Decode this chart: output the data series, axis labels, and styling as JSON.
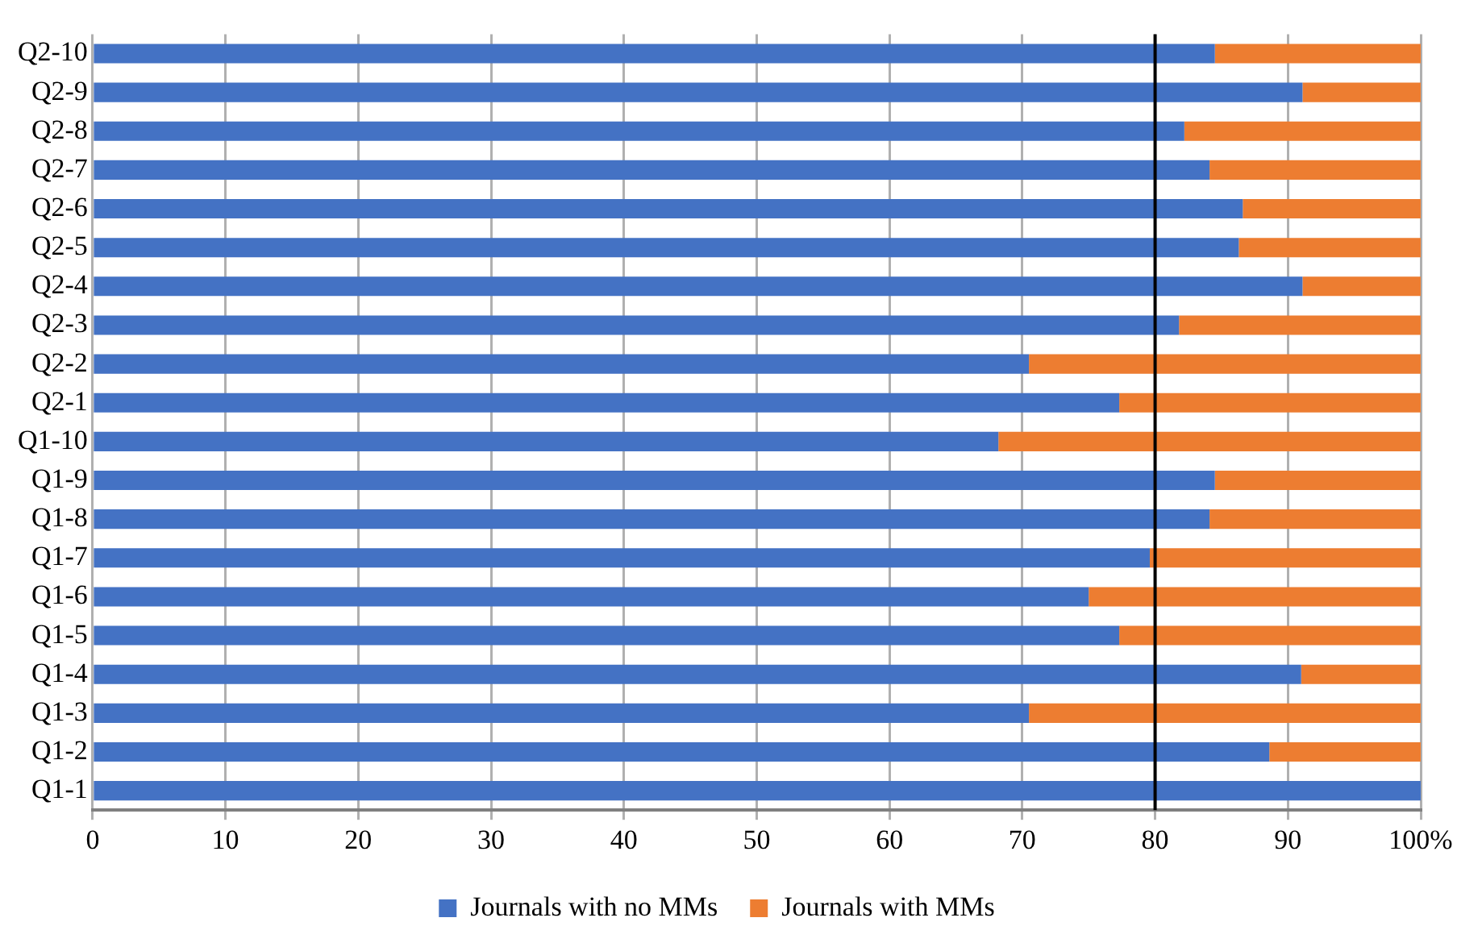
{
  "chart_data": {
    "type": "bar",
    "orientation": "horizontal",
    "stacked": true,
    "categories": [
      "Q2-10",
      "Q2-9",
      "Q2-8",
      "Q2-7",
      "Q2-6",
      "Q2-5",
      "Q2-4",
      "Q2-3",
      "Q2-2",
      "Q2-1",
      "Q1-10",
      "Q1-9",
      "Q1-8",
      "Q1-7",
      "Q1-6",
      "Q1-5",
      "Q1-4",
      "Q1-3",
      "Q1-2",
      "Q1-1"
    ],
    "series": [
      {
        "name": "Journals with no MMs",
        "color": "#4472c4",
        "values": [
          84.5,
          91.1,
          82.2,
          84.1,
          86.6,
          86.3,
          91.1,
          81.8,
          70.5,
          77.3,
          68.2,
          84.5,
          84.1,
          79.6,
          75.0,
          77.3,
          91.0,
          70.5,
          88.6,
          100
        ]
      },
      {
        "name": "Journals with MMs",
        "color": "#ed7d31",
        "values": [
          15.5,
          8.9,
          17.8,
          15.9,
          13.4,
          13.7,
          8.9,
          18.2,
          29.5,
          22.7,
          31.8,
          15.5,
          15.9,
          20.4,
          25.0,
          22.7,
          9.0,
          29.5,
          11.4,
          0
        ]
      }
    ],
    "xlim": [
      0,
      100
    ],
    "xticks": [
      0,
      10,
      20,
      30,
      40,
      50,
      60,
      70,
      80,
      90,
      {
        "value": 100,
        "label": "100%"
      }
    ],
    "ref_lines": [
      {
        "axis": "x",
        "value": 80,
        "color": "#000000"
      }
    ],
    "grid": "x",
    "legend": "bottom"
  }
}
